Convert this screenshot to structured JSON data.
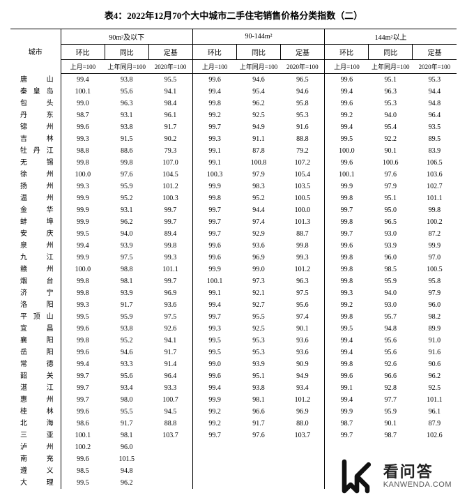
{
  "title": "表4：2022年12月70个大中城市二手住宅销售价格分类指数（二）",
  "header": {
    "city": "城市",
    "groups": [
      "90m²及以下",
      "90-144m²",
      "144m²以上"
    ],
    "sub": [
      "环比",
      "同比",
      "定基"
    ],
    "base": [
      "上月=100",
      "上年同月=100",
      "2020年=100"
    ]
  },
  "rows": [
    {
      "city": "唐　　山",
      "v": [
        "99.4",
        "93.8",
        "95.5",
        "99.6",
        "94.6",
        "96.5",
        "99.6",
        "95.1",
        "95.3"
      ]
    },
    {
      "city": "秦 皇 岛",
      "v": [
        "100.1",
        "95.6",
        "94.1",
        "99.4",
        "95.4",
        "94.6",
        "99.4",
        "96.3",
        "94.4"
      ]
    },
    {
      "city": "包　　头",
      "v": [
        "99.0",
        "96.3",
        "98.4",
        "99.8",
        "96.2",
        "95.8",
        "99.6",
        "95.3",
        "94.8"
      ]
    },
    {
      "city": "丹　　东",
      "v": [
        "98.7",
        "93.1",
        "96.1",
        "99.2",
        "92.5",
        "95.3",
        "99.2",
        "94.0",
        "96.4"
      ]
    },
    {
      "city": "锦　　州",
      "v": [
        "99.6",
        "93.8",
        "91.7",
        "99.7",
        "94.9",
        "91.6",
        "99.4",
        "95.4",
        "93.5"
      ]
    },
    {
      "city": "吉　　林",
      "v": [
        "99.3",
        "91.5",
        "90.2",
        "99.3",
        "91.1",
        "88.8",
        "99.5",
        "92.2",
        "89.5"
      ]
    },
    {
      "city": "牡 丹 江",
      "v": [
        "98.8",
        "88.6",
        "79.3",
        "99.1",
        "87.8",
        "79.2",
        "100.0",
        "90.1",
        "83.9"
      ]
    },
    {
      "city": "无　　锡",
      "v": [
        "99.8",
        "99.8",
        "107.0",
        "99.1",
        "100.8",
        "107.2",
        "99.6",
        "100.6",
        "106.5"
      ]
    },
    {
      "city": "徐　　州",
      "v": [
        "100.0",
        "97.6",
        "104.5",
        "100.3",
        "97.9",
        "105.4",
        "100.1",
        "97.6",
        "103.6"
      ]
    },
    {
      "city": "扬　　州",
      "v": [
        "99.3",
        "95.9",
        "101.2",
        "99.9",
        "98.3",
        "103.5",
        "99.9",
        "97.9",
        "102.7"
      ]
    },
    {
      "city": "温　　州",
      "v": [
        "99.9",
        "95.2",
        "100.3",
        "99.8",
        "95.2",
        "100.5",
        "99.8",
        "95.1",
        "101.1"
      ]
    },
    {
      "city": "金　　华",
      "v": [
        "99.9",
        "93.1",
        "99.7",
        "99.7",
        "94.4",
        "100.0",
        "99.7",
        "95.0",
        "99.8"
      ]
    },
    {
      "city": "蚌　　埠",
      "v": [
        "99.9",
        "96.2",
        "99.7",
        "99.7",
        "97.4",
        "101.3",
        "99.8",
        "96.5",
        "100.2"
      ]
    },
    {
      "city": "安　　庆",
      "v": [
        "99.5",
        "94.0",
        "89.4",
        "99.7",
        "92.9",
        "88.7",
        "99.7",
        "93.0",
        "87.2"
      ]
    },
    {
      "city": "泉　　州",
      "v": [
        "99.4",
        "93.9",
        "99.8",
        "99.6",
        "93.6",
        "99.8",
        "99.6",
        "93.9",
        "99.9"
      ]
    },
    {
      "city": "九　　江",
      "v": [
        "99.9",
        "97.5",
        "99.3",
        "99.6",
        "96.9",
        "99.3",
        "99.8",
        "96.0",
        "97.0"
      ]
    },
    {
      "city": "赣　　州",
      "v": [
        "100.0",
        "98.8",
        "101.1",
        "99.9",
        "99.0",
        "101.2",
        "99.8",
        "98.5",
        "100.5"
      ]
    },
    {
      "city": "烟　　台",
      "v": [
        "99.8",
        "98.1",
        "99.7",
        "100.1",
        "97.3",
        "96.3",
        "99.8",
        "95.9",
        "95.8"
      ]
    },
    {
      "city": "济　　宁",
      "v": [
        "99.8",
        "93.9",
        "96.9",
        "99.1",
        "92.1",
        "97.5",
        "99.3",
        "94.0",
        "97.9"
      ]
    },
    {
      "city": "洛　　阳",
      "v": [
        "99.3",
        "91.7",
        "93.6",
        "99.4",
        "92.7",
        "95.6",
        "99.2",
        "93.0",
        "96.0"
      ]
    },
    {
      "city": "平 顶 山",
      "v": [
        "99.5",
        "95.9",
        "97.5",
        "99.7",
        "95.5",
        "97.4",
        "99.8",
        "95.7",
        "98.2"
      ]
    },
    {
      "city": "宜　　昌",
      "v": [
        "99.6",
        "93.8",
        "92.6",
        "99.3",
        "92.5",
        "90.1",
        "99.5",
        "94.8",
        "89.9"
      ]
    },
    {
      "city": "襄　　阳",
      "v": [
        "99.8",
        "95.2",
        "94.1",
        "99.5",
        "95.3",
        "93.6",
        "99.4",
        "95.6",
        "91.0"
      ]
    },
    {
      "city": "岳　　阳",
      "v": [
        "99.6",
        "94.6",
        "91.7",
        "99.5",
        "95.3",
        "93.6",
        "99.4",
        "95.6",
        "91.6"
      ]
    },
    {
      "city": "常　　德",
      "v": [
        "99.4",
        "93.3",
        "91.4",
        "99.0",
        "93.9",
        "90.9",
        "99.8",
        "92.6",
        "90.6"
      ]
    },
    {
      "city": "韶　　关",
      "v": [
        "99.7",
        "95.6",
        "96.4",
        "99.6",
        "95.1",
        "94.9",
        "99.6",
        "96.6",
        "96.2"
      ]
    },
    {
      "city": "湛　　江",
      "v": [
        "99.7",
        "93.4",
        "93.3",
        "99.4",
        "93.8",
        "93.4",
        "99.1",
        "92.8",
        "92.5"
      ]
    },
    {
      "city": "惠　　州",
      "v": [
        "99.7",
        "98.0",
        "100.7",
        "99.9",
        "98.1",
        "101.2",
        "99.4",
        "97.7",
        "101.1"
      ]
    },
    {
      "city": "桂　　林",
      "v": [
        "99.6",
        "95.5",
        "94.5",
        "99.2",
        "96.6",
        "96.9",
        "99.9",
        "95.9",
        "96.1"
      ]
    },
    {
      "city": "北　　海",
      "v": [
        "98.6",
        "91.7",
        "88.8",
        "99.2",
        "91.7",
        "88.0",
        "98.7",
        "90.1",
        "87.9"
      ]
    },
    {
      "city": "三　　亚",
      "v": [
        "100.1",
        "98.1",
        "103.7",
        "99.7",
        "97.6",
        "103.7",
        "99.7",
        "98.7",
        "102.6"
      ]
    },
    {
      "city": "泸　　州",
      "v": [
        "100.2",
        "96.0",
        "",
        "",
        "",
        "",
        "",
        "",
        ""
      ]
    },
    {
      "city": "南　　充",
      "v": [
        "99.6",
        "101.5",
        "",
        "",
        "",
        "",
        "",
        "",
        ""
      ]
    },
    {
      "city": "遵　　义",
      "v": [
        "98.5",
        "94.8",
        "",
        "",
        "",
        "",
        "",
        "",
        ""
      ]
    },
    {
      "city": "大　　理",
      "v": [
        "99.5",
        "96.2",
        "",
        "",
        "",
        "",
        "",
        "",
        ""
      ]
    }
  ],
  "watermark": {
    "cn": "看问答",
    "en": "KANWENDA.COM"
  }
}
